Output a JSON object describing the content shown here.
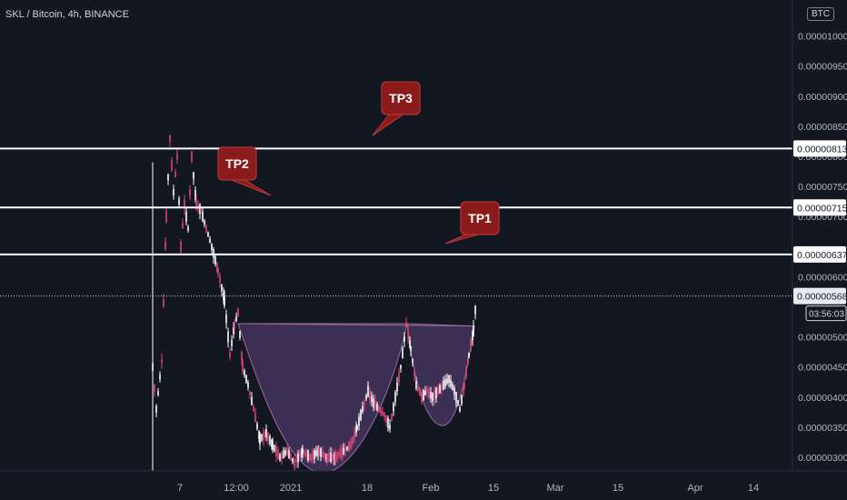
{
  "header": {
    "symbol_line": "SKL / Bitcoin, 4h, BINANCE",
    "currency_badge": "BTC"
  },
  "colors": {
    "background": "#131722",
    "candle_up": "#ffffff",
    "candle_down": "#e0457b",
    "target_line": "#ffffff",
    "callout_fill": "#8b1a1a",
    "pattern_fill": "#4a3a66",
    "axis_text": "#b2b5be"
  },
  "chart_data": {
    "type": "candlestick",
    "title": "SKL / Bitcoin, 4h, BINANCE",
    "xlabel": "",
    "ylabel": "",
    "ylim": [
      2.85e-06,
      1e-05
    ],
    "y_ticks": [
      "0.00000300",
      "0.00000350",
      "0.00000400",
      "0.00000450",
      "0.00000500",
      "0.00000600",
      "0.00000700",
      "0.00000750",
      "0.00000800",
      "0.00000850",
      "0.00000900",
      "0.00000950",
      "0.00001000"
    ],
    "x_ticks": [
      "7",
      "12:00",
      "2021",
      "18",
      "Feb",
      "15",
      "Mar",
      "15",
      "Apr",
      "14"
    ],
    "price_markers": [
      {
        "label": "0.00000813",
        "value": 8.13e-06,
        "style": "target"
      },
      {
        "label": "0.00000715",
        "value": 7.15e-06,
        "style": "target"
      },
      {
        "label": "0.00000637",
        "value": 6.37e-06,
        "style": "target"
      },
      {
        "label": "0.00000568",
        "value": 5.68e-06,
        "style": "current"
      }
    ],
    "countdown": "03:56:03",
    "callouts": [
      {
        "label": "TP1",
        "value": 6.37e-06
      },
      {
        "label": "TP2",
        "value": 7.15e-06
      },
      {
        "label": "TP3",
        "value": 8.13e-06
      }
    ],
    "price_path": [
      {
        "x": 168,
        "price": 4.5e-06
      },
      {
        "x": 172,
        "price": 3.8e-06
      },
      {
        "x": 178,
        "price": 4.6e-06
      },
      {
        "x": 183,
        "price": 7e-06
      },
      {
        "x": 187,
        "price": 8.3e-06
      },
      {
        "x": 191,
        "price": 7.4e-06
      },
      {
        "x": 195,
        "price": 8e-06
      },
      {
        "x": 199,
        "price": 6.5e-06
      },
      {
        "x": 203,
        "price": 7.2e-06
      },
      {
        "x": 207,
        "price": 6.8e-06
      },
      {
        "x": 211,
        "price": 8e-06
      },
      {
        "x": 216,
        "price": 7.2e-06
      },
      {
        "x": 221,
        "price": 7.1e-06
      },
      {
        "x": 227,
        "price": 6.8e-06
      },
      {
        "x": 233,
        "price": 6.5e-06
      },
      {
        "x": 240,
        "price": 6.1e-06
      },
      {
        "x": 247,
        "price": 5.6e-06
      },
      {
        "x": 253,
        "price": 4.7e-06
      },
      {
        "x": 258,
        "price": 5.2e-06
      },
      {
        "x": 262,
        "price": 5.4e-06
      },
      {
        "x": 267,
        "price": 4.5e-06
      },
      {
        "x": 273,
        "price": 4.2e-06
      },
      {
        "x": 279,
        "price": 3.8e-06
      },
      {
        "x": 286,
        "price": 3.3e-06
      },
      {
        "x": 293,
        "price": 3.4e-06
      },
      {
        "x": 300,
        "price": 3.2e-06
      },
      {
        "x": 308,
        "price": 3e-06
      },
      {
        "x": 316,
        "price": 3.1e-06
      },
      {
        "x": 324,
        "price": 2.9e-06
      },
      {
        "x": 333,
        "price": 3.1e-06
      },
      {
        "x": 342,
        "price": 3e-06
      },
      {
        "x": 351,
        "price": 3.1e-06
      },
      {
        "x": 360,
        "price": 3e-06
      },
      {
        "x": 369,
        "price": 3e-06
      },
      {
        "x": 378,
        "price": 3.1e-06
      },
      {
        "x": 386,
        "price": 3.2e-06
      },
      {
        "x": 393,
        "price": 3.5e-06
      },
      {
        "x": 399,
        "price": 3.8e-06
      },
      {
        "x": 405,
        "price": 4.1e-06
      },
      {
        "x": 411,
        "price": 3.9e-06
      },
      {
        "x": 417,
        "price": 3.8e-06
      },
      {
        "x": 423,
        "price": 3.7e-06
      },
      {
        "x": 429,
        "price": 3.5e-06
      },
      {
        "x": 435,
        "price": 4e-06
      },
      {
        "x": 441,
        "price": 4.5e-06
      },
      {
        "x": 447,
        "price": 5.2e-06
      },
      {
        "x": 452,
        "price": 4.8e-06
      },
      {
        "x": 458,
        "price": 4.2e-06
      },
      {
        "x": 464,
        "price": 4e-06
      },
      {
        "x": 470,
        "price": 4.1e-06
      },
      {
        "x": 476,
        "price": 4e-06
      },
      {
        "x": 482,
        "price": 4.1e-06
      },
      {
        "x": 488,
        "price": 4.2e-06
      },
      {
        "x": 494,
        "price": 4.3e-06
      },
      {
        "x": 500,
        "price": 4.1e-06
      },
      {
        "x": 506,
        "price": 3.8e-06
      },
      {
        "x": 511,
        "price": 4.2e-06
      },
      {
        "x": 516,
        "price": 4.7e-06
      },
      {
        "x": 521,
        "price": 5.1e-06
      },
      {
        "x": 525,
        "price": 5.8e-06
      }
    ]
  }
}
